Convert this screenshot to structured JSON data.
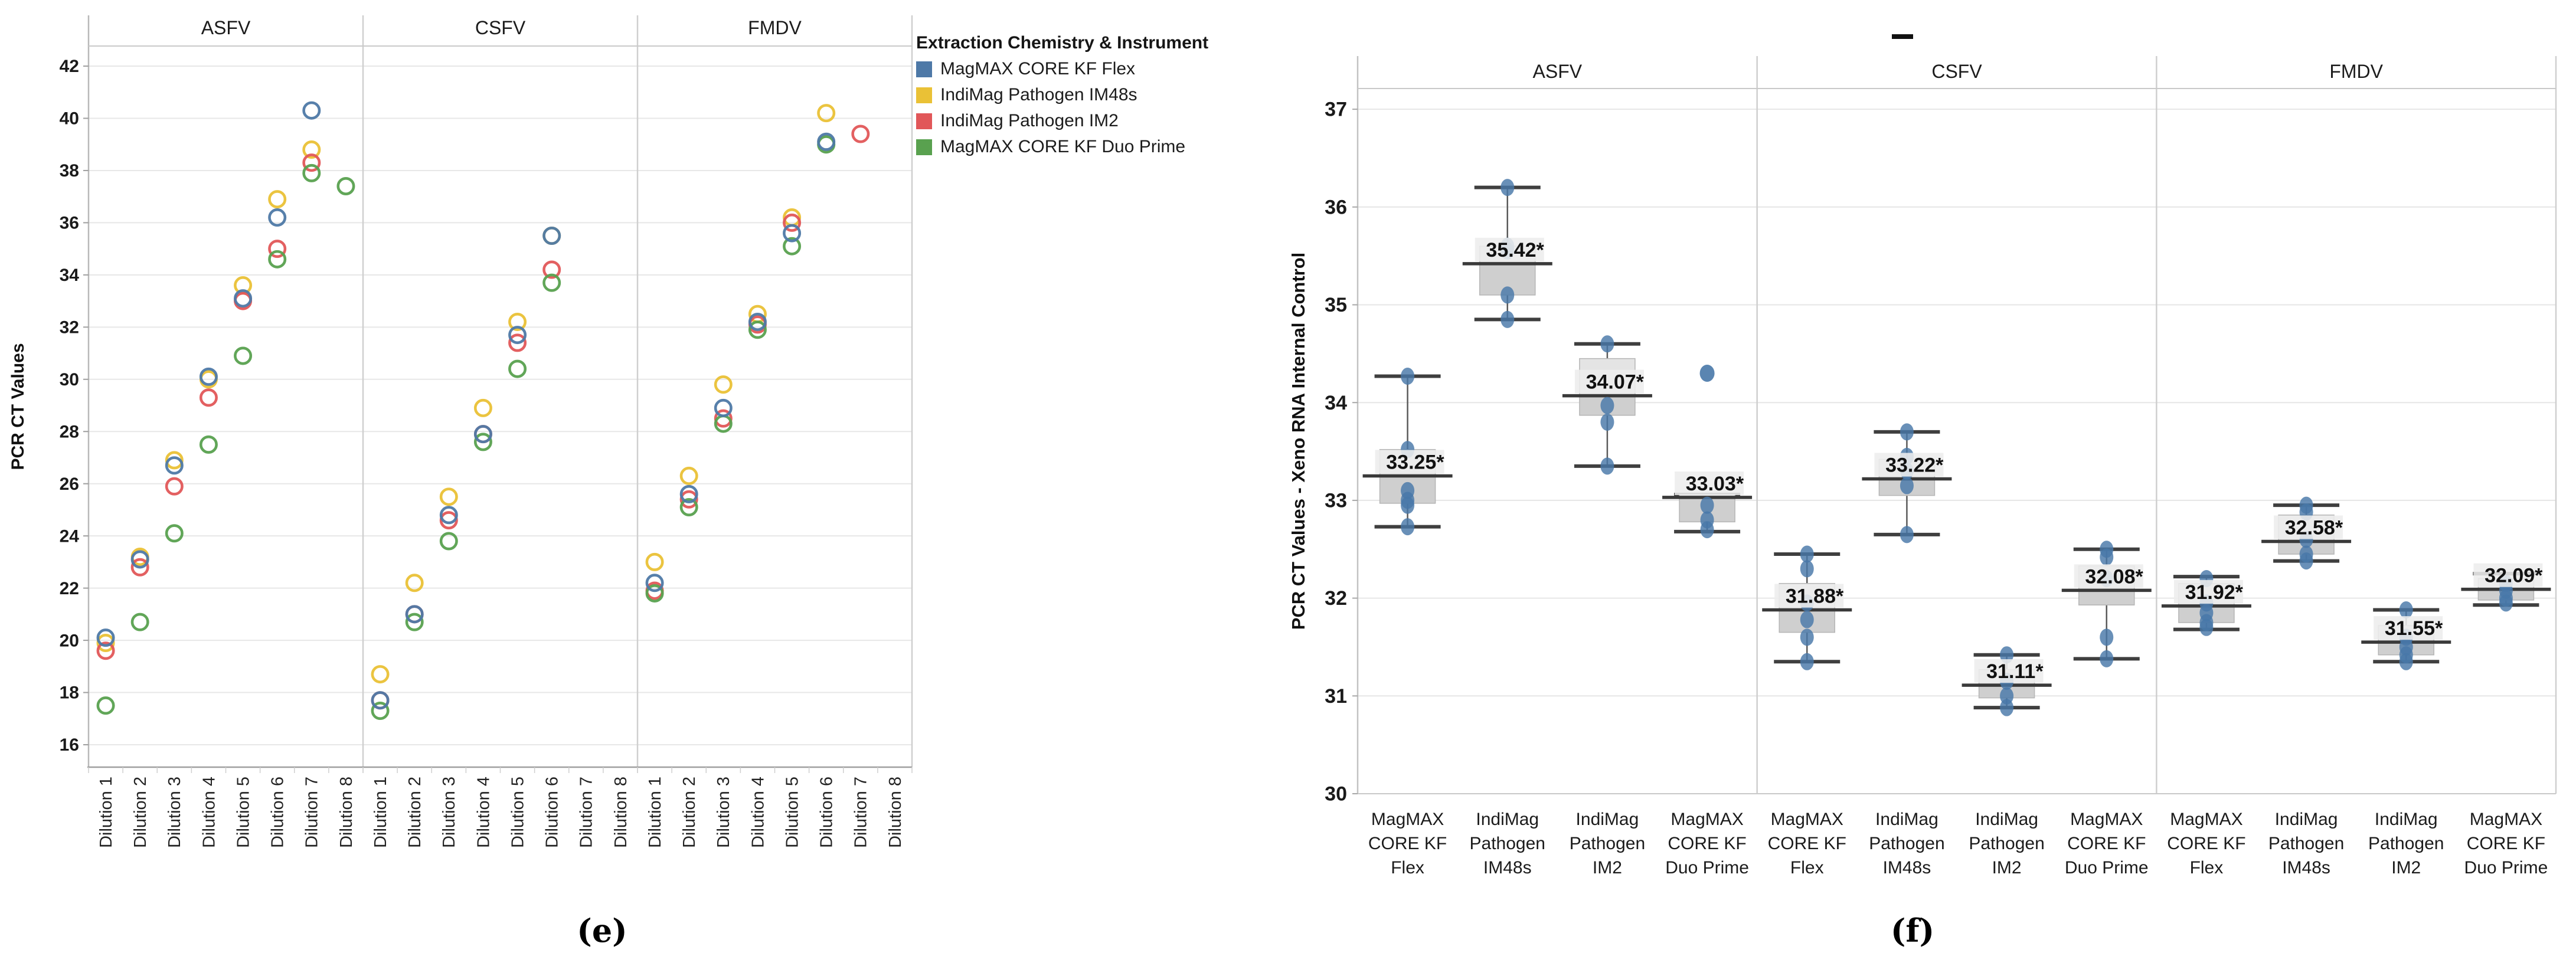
{
  "captions": {
    "e": "(e)",
    "f": "(f)"
  },
  "legend": {
    "title": "Extraction Chemistry & Instrument",
    "items": [
      {
        "label": "MagMAX CORE KF Flex",
        "color": "#4e79a7"
      },
      {
        "label": "IndiMag Pathogen IM48s",
        "color": "#eac136"
      },
      {
        "label": "IndiMag Pathogen IM2",
        "color": "#e15759"
      },
      {
        "label": "MagMAX CORE KF Duo Prime",
        "color": "#59a14f"
      }
    ]
  },
  "figure_f": {
    "legend_marker": "-"
  },
  "chart_data": [
    {
      "id": "e",
      "type": "scatter",
      "title": "",
      "panels": [
        "ASFV",
        "CSFV",
        "FMDV"
      ],
      "categories": [
        "Dilution 1",
        "Dilution 2",
        "Dilution 3",
        "Dilution 4",
        "Dilution 5",
        "Dilution 6",
        "Dilution 7",
        "Dilution 8"
      ],
      "xlabel": "",
      "ylabel": "PCR CT Values",
      "ylim": [
        15,
        43
      ],
      "yticks": [
        16,
        18,
        20,
        22,
        24,
        26,
        28,
        30,
        32,
        34,
        36,
        38,
        40,
        42
      ],
      "grid": true,
      "legend_position": "top-right-outside",
      "series": [
        {
          "name": "MagMAX CORE KF Flex",
          "color": "#4e79a7",
          "values": {
            "ASFV": [
              20.1,
              23.1,
              26.7,
              30.1,
              33.1,
              36.2,
              40.3,
              null
            ],
            "CSFV": [
              17.7,
              21.0,
              24.8,
              27.9,
              31.7,
              35.5,
              null,
              null
            ],
            "FMDV": [
              22.2,
              25.6,
              28.9,
              32.2,
              35.6,
              39.1,
              null,
              null
            ]
          }
        },
        {
          "name": "IndiMag Pathogen IM48s",
          "color": "#eac136",
          "values": {
            "ASFV": [
              19.9,
              23.2,
              26.9,
              30.0,
              33.6,
              36.9,
              38.8,
              null
            ],
            "CSFV": [
              18.7,
              22.2,
              25.5,
              28.9,
              32.2,
              35.5,
              null,
              null
            ],
            "FMDV": [
              23.0,
              26.3,
              29.8,
              32.5,
              36.2,
              40.2,
              null,
              null
            ]
          }
        },
        {
          "name": "IndiMag Pathogen IM2",
          "color": "#e15759",
          "values": {
            "ASFV": [
              19.6,
              22.8,
              25.9,
              29.3,
              33.0,
              35.0,
              38.3,
              null
            ],
            "CSFV": [
              17.7,
              21.0,
              24.6,
              27.9,
              31.4,
              34.2,
              null,
              null
            ],
            "FMDV": [
              21.9,
              25.4,
              28.5,
              32.1,
              36.0,
              null,
              39.4,
              null
            ]
          }
        },
        {
          "name": "MagMAX CORE KF Duo Prime",
          "color": "#59a14f",
          "values": {
            "ASFV": [
              17.5,
              20.7,
              24.1,
              27.5,
              30.9,
              34.6,
              37.9,
              37.4
            ],
            "CSFV": [
              17.3,
              20.7,
              23.8,
              27.6,
              30.4,
              33.7,
              null,
              null
            ],
            "FMDV": [
              21.8,
              25.1,
              28.3,
              31.9,
              35.1,
              39.0,
              null,
              null
            ]
          }
        }
      ]
    },
    {
      "id": "f",
      "type": "box",
      "title": "",
      "panels": [
        "ASFV",
        "CSFV",
        "FMDV"
      ],
      "categories": [
        "MagMAX CORE KF Flex",
        "IndiMag Pathogen IM48s",
        "IndiMag Pathogen IM2",
        "MagMAX CORE KF Duo Prime"
      ],
      "category_lines": [
        [
          "MagMAX",
          "CORE KF",
          "Flex"
        ],
        [
          "IndiMag",
          "Pathogen",
          "IM48s"
        ],
        [
          "IndiMag",
          "Pathogen",
          "IM2"
        ],
        [
          "MagMAX",
          "CORE KF",
          "Duo Prime"
        ]
      ],
      "xlabel": "",
      "ylabel": "PCR CT Values - Xeno RNA Internal Control",
      "ylim": [
        30,
        37
      ],
      "yticks": [
        30,
        31,
        32,
        33,
        34,
        35,
        36,
        37
      ],
      "grid": true,
      "point_color": "#4878a8",
      "groups": [
        {
          "panel": "ASFV",
          "boxes": [
            {
              "category": "MagMAX CORE KF Flex",
              "label": "33.25*",
              "median": 33.25,
              "q1": 32.97,
              "q3": 33.52,
              "whisker_low": 32.73,
              "whisker_high": 34.27,
              "points": [
                34.27,
                33.52,
                33.1,
                33.0,
                32.95,
                32.73
              ],
              "outliers": []
            },
            {
              "category": "IndiMag Pathogen IM48s",
              "label": "35.42*",
              "median": 35.42,
              "q1": 35.1,
              "q3": 35.6,
              "whisker_low": 34.85,
              "whisker_high": 36.2,
              "points": [
                36.2,
                35.6,
                35.55,
                35.1,
                34.85
              ],
              "outliers": []
            },
            {
              "category": "IndiMag Pathogen IM2",
              "label": "34.07*",
              "median": 34.07,
              "q1": 33.87,
              "q3": 34.45,
              "whisker_low": 33.35,
              "whisker_high": 34.6,
              "points": [
                34.6,
                33.97,
                33.8,
                33.35
              ],
              "outliers": []
            },
            {
              "category": "MagMAX CORE KF Duo Prime",
              "label": "33.03*",
              "median": 33.03,
              "q1": 32.78,
              "q3": 33.06,
              "whisker_low": 32.68,
              "whisker_high": 33.06,
              "points": [
                32.95,
                32.8,
                32.7
              ],
              "outliers": [
                34.3
              ]
            }
          ]
        },
        {
          "panel": "CSFV",
          "boxes": [
            {
              "category": "MagMAX CORE KF Flex",
              "label": "31.88*",
              "median": 31.88,
              "q1": 31.65,
              "q3": 32.15,
              "whisker_low": 31.35,
              "whisker_high": 32.45,
              "points": [
                32.45,
                32.3,
                31.95,
                31.78,
                31.6,
                31.35
              ],
              "outliers": []
            },
            {
              "category": "IndiMag Pathogen IM48s",
              "label": "33.22*",
              "median": 33.22,
              "q1": 33.05,
              "q3": 33.42,
              "whisker_low": 32.65,
              "whisker_high": 33.7,
              "points": [
                33.7,
                33.45,
                33.3,
                33.15,
                32.65
              ],
              "outliers": []
            },
            {
              "category": "IndiMag Pathogen IM2",
              "label": "31.11*",
              "median": 31.11,
              "q1": 30.98,
              "q3": 31.27,
              "whisker_low": 30.88,
              "whisker_high": 31.42,
              "points": [
                31.42,
                31.15,
                31.0,
                30.88
              ],
              "outliers": []
            },
            {
              "category": "MagMAX CORE KF Duo Prime",
              "label": "32.08*",
              "median": 32.08,
              "q1": 31.93,
              "q3": 32.33,
              "whisker_low": 31.38,
              "whisker_high": 32.5,
              "points": [
                32.5,
                32.42,
                32.2,
                31.6,
                31.38
              ],
              "outliers": []
            }
          ]
        },
        {
          "panel": "FMDV",
          "boxes": [
            {
              "category": "MagMAX CORE KF Flex",
              "label": "31.92*",
              "median": 31.92,
              "q1": 31.75,
              "q3": 32.15,
              "whisker_low": 31.68,
              "whisker_high": 32.22,
              "points": [
                32.2,
                31.95,
                31.85,
                31.75,
                31.7
              ],
              "outliers": []
            },
            {
              "category": "IndiMag Pathogen IM48s",
              "label": "32.58*",
              "median": 32.58,
              "q1": 32.45,
              "q3": 32.85,
              "whisker_low": 32.38,
              "whisker_high": 32.95,
              "points": [
                32.95,
                32.88,
                32.6,
                32.45,
                32.38
              ],
              "outliers": []
            },
            {
              "category": "IndiMag Pathogen IM2",
              "label": "31.55*",
              "median": 31.55,
              "q1": 31.42,
              "q3": 31.72,
              "whisker_low": 31.35,
              "whisker_high": 31.88,
              "points": [
                31.88,
                31.6,
                31.5,
                31.42,
                31.35
              ],
              "outliers": []
            },
            {
              "category": "MagMAX CORE KF Duo Prime",
              "label": "32.09*",
              "median": 32.09,
              "q1": 31.98,
              "q3": 32.2,
              "whisker_low": 31.93,
              "whisker_high": 32.25,
              "points": [
                32.15,
                32.08,
                32.0,
                31.95
              ],
              "outliers": []
            }
          ]
        }
      ]
    }
  ]
}
